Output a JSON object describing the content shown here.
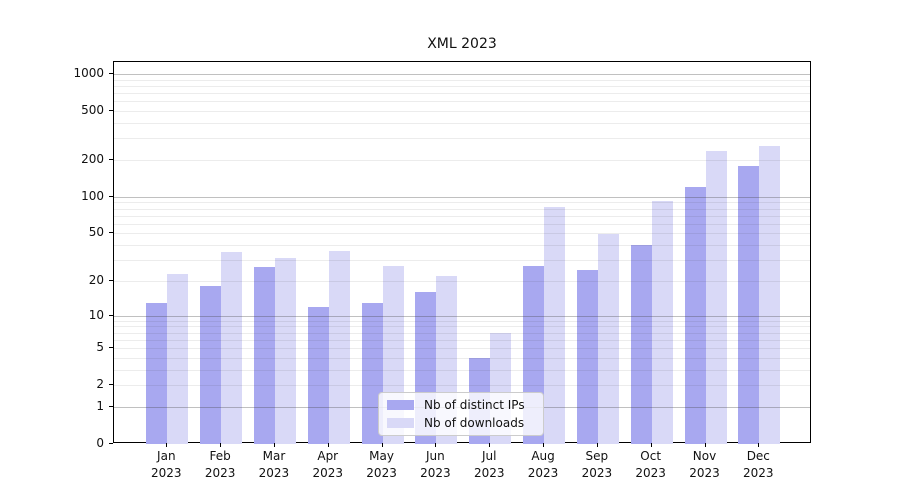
{
  "title": "XML 2023",
  "legend": {
    "items": [
      {
        "label": "Nb of distinct IPs",
        "color": "#a8a8f0"
      },
      {
        "label": "Nb of downloads",
        "color": "#d9d9f7"
      }
    ]
  },
  "chart_data": {
    "type": "bar",
    "title": "XML 2023",
    "categories": [
      "Jan 2023",
      "Feb 2023",
      "Mar 2023",
      "Apr 2023",
      "May 2023",
      "Jun 2023",
      "Jul 2023",
      "Aug 2023",
      "Sep 2023",
      "Oct 2023",
      "Nov 2023",
      "Dec 2023"
    ],
    "series": [
      {
        "name": "Nb of distinct IPs",
        "color": "#a8a8f0",
        "values": [
          13,
          18,
          26,
          12,
          13,
          16,
          4,
          27,
          25,
          40,
          120,
          180
        ]
      },
      {
        "name": "Nb of downloads",
        "color": "#d9d9f7",
        "values": [
          23,
          35,
          31,
          36,
          27,
          22,
          7,
          83,
          49,
          93,
          235,
          262
        ]
      }
    ],
    "xlabel": "",
    "ylabel": "",
    "yscale": "log1p",
    "ylim": [
      0,
      1250
    ],
    "y_ticks": [
      0,
      1,
      2,
      5,
      10,
      20,
      50,
      100,
      200,
      500,
      1000
    ],
    "y_major_gridlines": [
      1,
      10,
      100,
      1000
    ],
    "y_minor_gridlines": [
      2,
      3,
      4,
      5,
      6,
      7,
      8,
      9,
      20,
      30,
      40,
      50,
      60,
      70,
      80,
      90,
      200,
      300,
      400,
      500,
      600,
      700,
      800,
      900
    ],
    "grid": true,
    "legend_position": "lower center"
  }
}
